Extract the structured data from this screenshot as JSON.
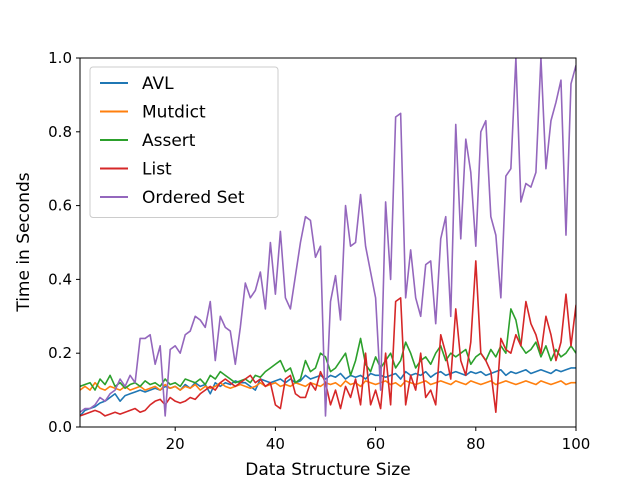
{
  "chart_data": {
    "type": "line",
    "title": "",
    "xlabel": "Data Structure Size",
    "ylabel": "Time in Seconds",
    "xlim": [
      1,
      100
    ],
    "ylim": [
      0,
      1.0
    ],
    "x_ticks": [
      20,
      40,
      60,
      80,
      100
    ],
    "x_tick_labels": [
      "20",
      "40",
      "60",
      "80",
      "100"
    ],
    "y_ticks": [
      0.0,
      0.2,
      0.4,
      0.6,
      0.8,
      1.0
    ],
    "y_tick_labels": [
      "0.0",
      "0.2",
      "0.4",
      "0.6",
      "0.8",
      "1.0"
    ],
    "grid": false,
    "legend_position": "upper-left",
    "x_start": 1,
    "series": [
      {
        "name": "AVL",
        "color": "#1f77b4",
        "values": [
          0.03,
          0.045,
          0.05,
          0.055,
          0.065,
          0.07,
          0.08,
          0.09,
          0.07,
          0.085,
          0.09,
          0.095,
          0.1,
          0.095,
          0.1,
          0.105,
          0.1,
          0.11,
          0.105,
          0.11,
          0.1,
          0.115,
          0.105,
          0.12,
          0.11,
          0.115,
          0.09,
          0.12,
          0.11,
          0.12,
          0.115,
          0.125,
          0.12,
          0.12,
          0.11,
          0.1,
          0.13,
          0.125,
          0.12,
          0.125,
          0.13,
          0.12,
          0.13,
          0.12,
          0.125,
          0.14,
          0.13,
          0.135,
          0.14,
          0.13,
          0.14,
          0.135,
          0.145,
          0.13,
          0.14,
          0.135,
          0.14,
          0.13,
          0.145,
          0.14,
          0.14,
          0.135,
          0.14,
          0.145,
          0.13,
          0.15,
          0.14,
          0.145,
          0.14,
          0.15,
          0.135,
          0.145,
          0.15,
          0.14,
          0.145,
          0.15,
          0.145,
          0.14,
          0.15,
          0.145,
          0.15,
          0.14,
          0.145,
          0.15,
          0.155,
          0.14,
          0.15,
          0.145,
          0.15,
          0.155,
          0.145,
          0.15,
          0.155,
          0.15,
          0.145,
          0.155,
          0.15,
          0.155,
          0.16,
          0.16
        ]
      },
      {
        "name": "Mutdict",
        "color": "#ff7f0e",
        "values": [
          0.1,
          0.11,
          0.1,
          0.12,
          0.105,
          0.1,
          0.11,
          0.105,
          0.1,
          0.11,
          0.1,
          0.105,
          0.11,
          0.1,
          0.105,
          0.11,
          0.1,
          0.115,
          0.105,
          0.11,
          0.1,
          0.11,
          0.105,
          0.115,
          0.1,
          0.11,
          0.105,
          0.11,
          0.12,
          0.11,
          0.105,
          0.11,
          0.115,
          0.11,
          0.105,
          0.11,
          0.12,
          0.11,
          0.115,
          0.12,
          0.11,
          0.115,
          0.11,
          0.12,
          0.115,
          0.11,
          0.12,
          0.115,
          0.11,
          0.12,
          0.115,
          0.12,
          0.11,
          0.125,
          0.115,
          0.12,
          0.11,
          0.125,
          0.12,
          0.115,
          0.12,
          0.125,
          0.115,
          0.12,
          0.11,
          0.125,
          0.12,
          0.115,
          0.12,
          0.125,
          0.115,
          0.12,
          0.125,
          0.12,
          0.115,
          0.125,
          0.12,
          0.115,
          0.125,
          0.12,
          0.115,
          0.12,
          0.125,
          0.115,
          0.12,
          0.125,
          0.12,
          0.115,
          0.12,
          0.125,
          0.12,
          0.115,
          0.125,
          0.12,
          0.115,
          0.12,
          0.125,
          0.115,
          0.12,
          0.12
        ]
      },
      {
        "name": "Assert",
        "color": "#2ca02c",
        "values": [
          0.11,
          0.115,
          0.12,
          0.1,
          0.13,
          0.115,
          0.14,
          0.11,
          0.12,
          0.105,
          0.115,
          0.12,
          0.11,
          0.125,
          0.115,
          0.12,
          0.11,
          0.13,
          0.115,
          0.12,
          0.11,
          0.13,
          0.125,
          0.12,
          0.13,
          0.115,
          0.14,
          0.13,
          0.15,
          0.14,
          0.13,
          0.12,
          0.125,
          0.13,
          0.12,
          0.14,
          0.135,
          0.15,
          0.16,
          0.17,
          0.18,
          0.15,
          0.16,
          0.12,
          0.13,
          0.18,
          0.15,
          0.16,
          0.2,
          0.19,
          0.15,
          0.16,
          0.18,
          0.2,
          0.14,
          0.18,
          0.24,
          0.17,
          0.15,
          0.19,
          0.16,
          0.18,
          0.2,
          0.16,
          0.18,
          0.23,
          0.2,
          0.16,
          0.18,
          0.19,
          0.17,
          0.2,
          0.22,
          0.18,
          0.2,
          0.19,
          0.2,
          0.21,
          0.17,
          0.19,
          0.2,
          0.18,
          0.21,
          0.19,
          0.22,
          0.2,
          0.32,
          0.29,
          0.22,
          0.2,
          0.21,
          0.23,
          0.19,
          0.22,
          0.18,
          0.21,
          0.19,
          0.2,
          0.22,
          0.2
        ]
      },
      {
        "name": "List",
        "color": "#d62728",
        "values": [
          0.03,
          0.035,
          0.04,
          0.045,
          0.04,
          0.03,
          0.035,
          0.04,
          0.035,
          0.04,
          0.045,
          0.05,
          0.04,
          0.045,
          0.06,
          0.07,
          0.075,
          0.06,
          0.08,
          0.07,
          0.065,
          0.07,
          0.08,
          0.075,
          0.09,
          0.1,
          0.11,
          0.1,
          0.12,
          0.13,
          0.12,
          0.11,
          0.12,
          0.13,
          0.14,
          0.12,
          0.13,
          0.11,
          0.12,
          0.06,
          0.05,
          0.13,
          0.14,
          0.09,
          0.08,
          0.08,
          0.12,
          0.1,
          0.15,
          0.12,
          0.06,
          0.1,
          0.05,
          0.11,
          0.08,
          0.13,
          0.06,
          0.2,
          0.06,
          0.1,
          0.05,
          0.2,
          0.06,
          0.34,
          0.35,
          0.06,
          0.14,
          0.1,
          0.2,
          0.08,
          0.1,
          0.06,
          0.25,
          0.2,
          0.13,
          0.32,
          0.18,
          0.14,
          0.23,
          0.45,
          0.2,
          0.18,
          0.15,
          0.04,
          0.24,
          0.21,
          0.2,
          0.25,
          0.22,
          0.34,
          0.28,
          0.25,
          0.2,
          0.3,
          0.25,
          0.18,
          0.23,
          0.36,
          0.22,
          0.33,
          0.31
        ]
      },
      {
        "name": "Ordered Set",
        "color": "#9467bd",
        "values": [
          0.04,
          0.05,
          0.05,
          0.06,
          0.08,
          0.07,
          0.09,
          0.1,
          0.13,
          0.11,
          0.14,
          0.12,
          0.24,
          0.24,
          0.25,
          0.17,
          0.22,
          0.03,
          0.21,
          0.22,
          0.2,
          0.25,
          0.26,
          0.3,
          0.29,
          0.27,
          0.34,
          0.18,
          0.3,
          0.27,
          0.26,
          0.17,
          0.27,
          0.39,
          0.35,
          0.37,
          0.42,
          0.32,
          0.5,
          0.36,
          0.53,
          0.35,
          0.32,
          0.41,
          0.5,
          0.57,
          0.56,
          0.46,
          0.49,
          0.03,
          0.34,
          0.41,
          0.29,
          0.6,
          0.49,
          0.5,
          0.63,
          0.49,
          0.42,
          0.35,
          0.1,
          0.61,
          0.4,
          0.84,
          0.85,
          0.35,
          0.48,
          0.35,
          0.3,
          0.44,
          0.45,
          0.28,
          0.51,
          0.57,
          0.3,
          0.82,
          0.51,
          0.78,
          0.69,
          0.49,
          0.8,
          0.83,
          0.57,
          0.52,
          0.35,
          0.68,
          0.7,
          1.0,
          0.61,
          0.66,
          0.65,
          0.69,
          1.0,
          0.7,
          0.83,
          0.88,
          0.94,
          0.52,
          0.93,
          0.98
        ]
      }
    ]
  }
}
